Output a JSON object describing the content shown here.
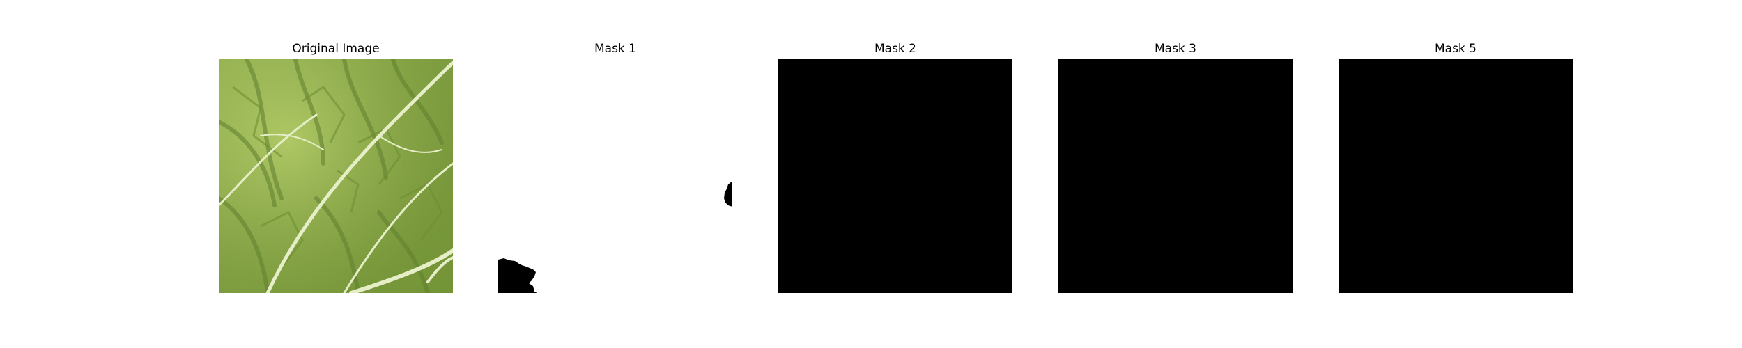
{
  "panels": [
    {
      "title": "Original Image",
      "content": "leaf-photo"
    },
    {
      "title": "Mask 1",
      "content": "mostly-white-mask",
      "fill_color": "#ffffff",
      "blob_color": "#000000"
    },
    {
      "title": "Mask 2",
      "content": "solid-mask",
      "fill_color": "#000000"
    },
    {
      "title": "Mask 3",
      "content": "solid-mask",
      "fill_color": "#000000"
    },
    {
      "title": "Mask 5",
      "content": "solid-mask",
      "fill_color": "#000000"
    }
  ],
  "colors": {
    "leaf_base": "#8fae4a",
    "leaf_light": "#b8d06a",
    "leaf_dark": "#5f7f2e",
    "vein": "#e6eec8"
  }
}
